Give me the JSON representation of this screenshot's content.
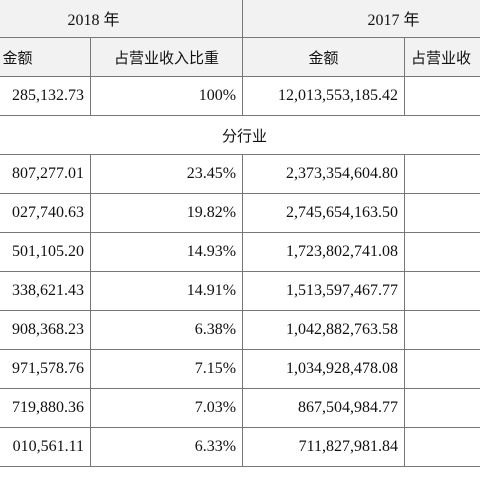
{
  "header": {
    "year_2018": "2018 年",
    "year_2017": "2017 年",
    "col_amount_2018": "金额",
    "col_ratio_2018": "占营业收入比重",
    "col_amount_2017": "金额",
    "col_ratio_2017": "占营业收"
  },
  "total_row": {
    "amount_2018": "285,132.73",
    "ratio_2018": "100%",
    "amount_2017": "12,013,553,185.42",
    "ratio_2017": ""
  },
  "section_label": "分行业",
  "rows": [
    {
      "amount_2018": "807,277.01",
      "ratio_2018": "23.45%",
      "amount_2017": "2,373,354,604.80",
      "ratio_2017": ""
    },
    {
      "amount_2018": "027,740.63",
      "ratio_2018": "19.82%",
      "amount_2017": "2,745,654,163.50",
      "ratio_2017": ""
    },
    {
      "amount_2018": "501,105.20",
      "ratio_2018": "14.93%",
      "amount_2017": "1,723,802,741.08",
      "ratio_2017": ""
    },
    {
      "amount_2018": "338,621.43",
      "ratio_2018": "14.91%",
      "amount_2017": "1,513,597,467.77",
      "ratio_2017": ""
    },
    {
      "amount_2018": "908,368.23",
      "ratio_2018": "6.38%",
      "amount_2017": "1,042,882,763.58",
      "ratio_2017": ""
    },
    {
      "amount_2018": "971,578.76",
      "ratio_2018": "7.15%",
      "amount_2017": "1,034,928,478.08",
      "ratio_2017": ""
    },
    {
      "amount_2018": "719,880.36",
      "ratio_2018": "7.03%",
      "amount_2017": "867,504,984.77",
      "ratio_2017": ""
    },
    {
      "amount_2018": "010,561.11",
      "ratio_2018": "6.33%",
      "amount_2017": "711,827,981.84",
      "ratio_2017": ""
    }
  ]
}
